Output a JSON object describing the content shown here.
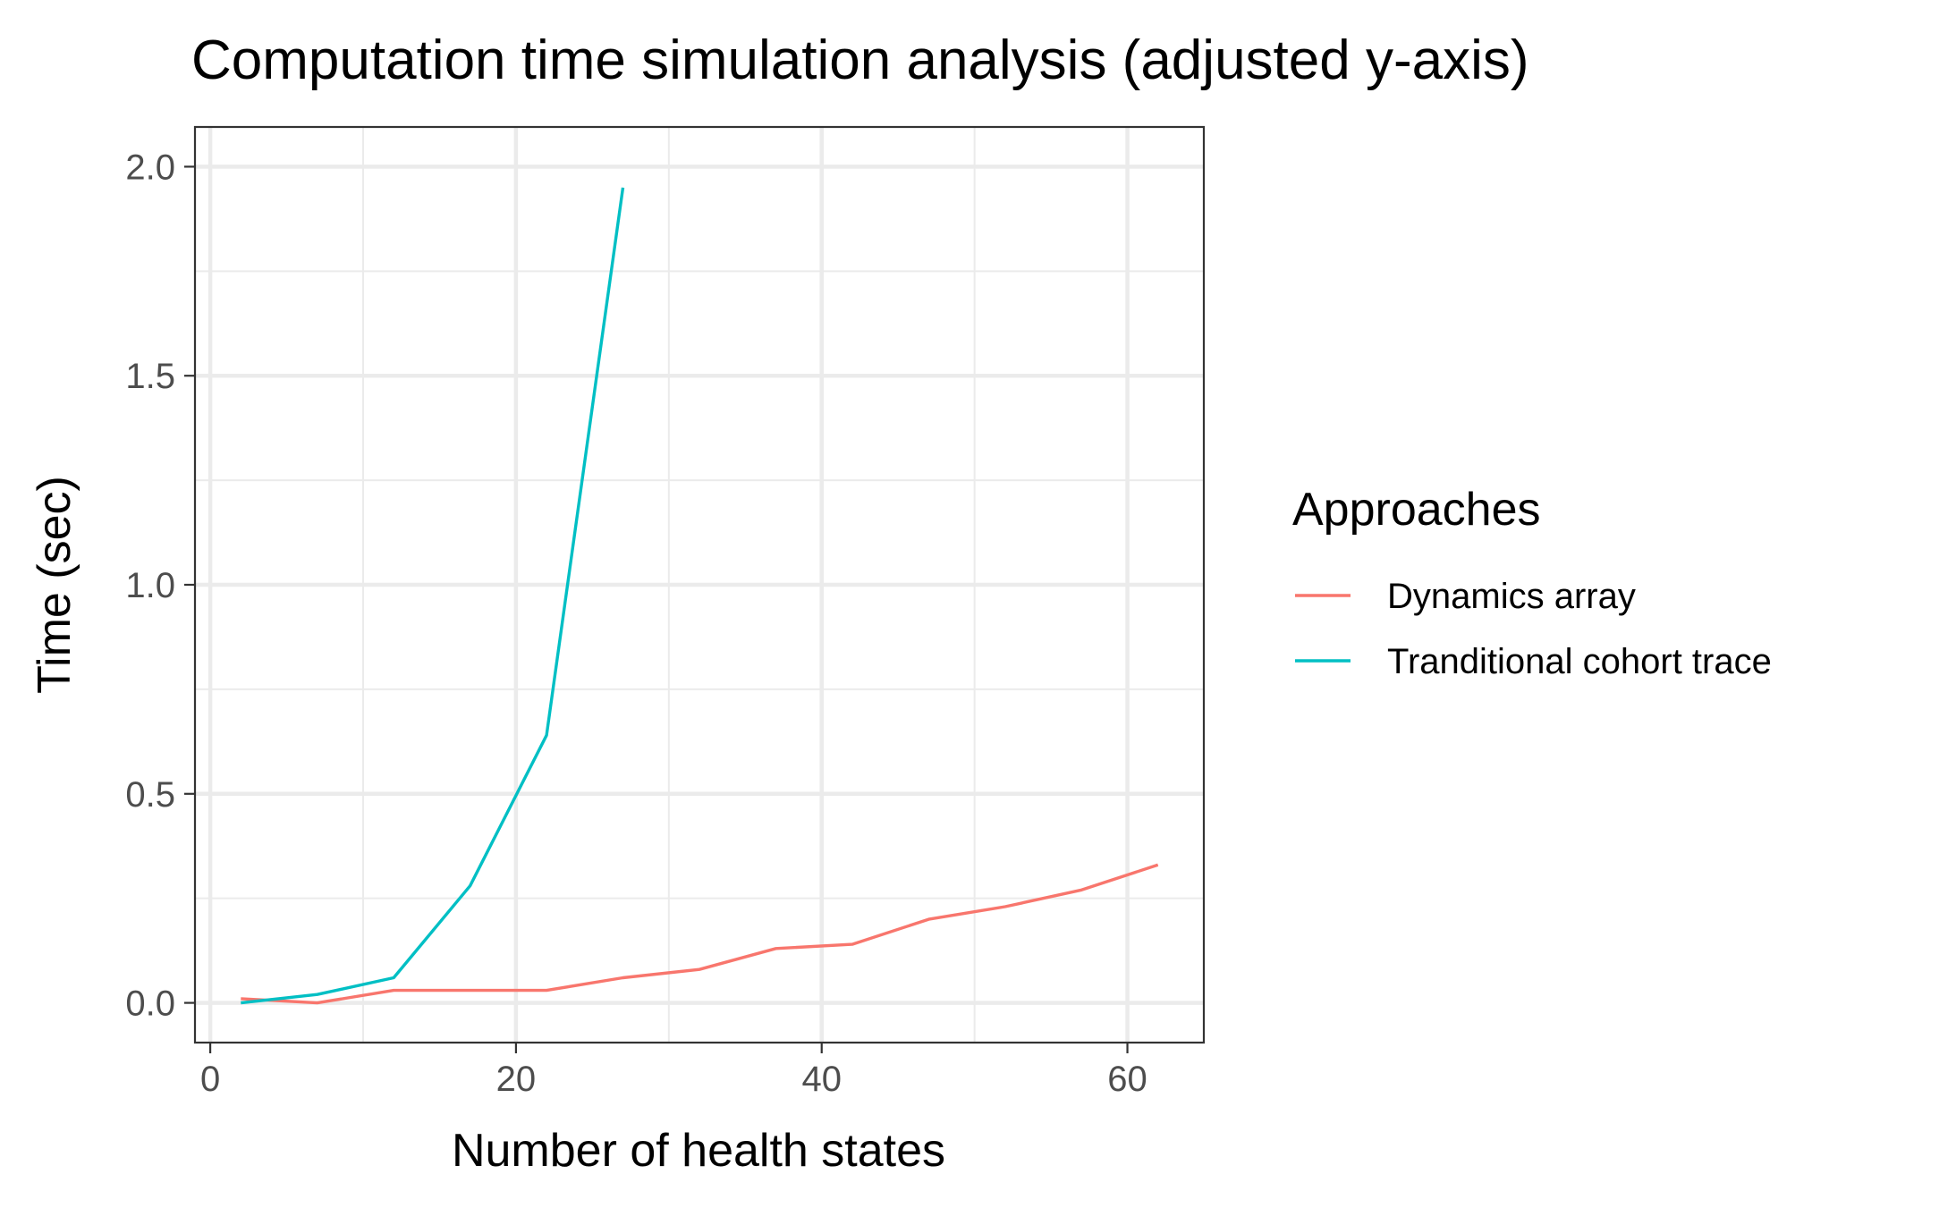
{
  "chart_data": {
    "type": "line",
    "title": "Computation time simulation analysis (adjusted y-axis)",
    "xlabel": "Number of health states",
    "ylabel": "Time (sec)",
    "xlim": [
      -1,
      65
    ],
    "ylim": [
      -0.095,
      2.095
    ],
    "x_ticks": [
      0,
      20,
      40,
      60
    ],
    "x_tick_labels": [
      "0",
      "20",
      "40",
      "60"
    ],
    "x_minor_ticks": [
      10,
      30,
      50
    ],
    "y_ticks": [
      0.0,
      0.5,
      1.0,
      1.5,
      2.0
    ],
    "y_tick_labels": [
      "0.0",
      "0.5",
      "1.0",
      "1.5",
      "2.0"
    ],
    "y_minor_ticks": [
      0.25,
      0.75,
      1.25,
      1.75
    ],
    "grid": true,
    "legend": {
      "title": "Approaches",
      "position": "right"
    },
    "series": [
      {
        "name": "Dynamics array",
        "color": "#F8766D",
        "x": [
          2,
          7,
          12,
          17,
          22,
          27,
          32,
          37,
          42,
          47,
          52,
          57,
          62
        ],
        "y": [
          0.01,
          0.0,
          0.03,
          0.03,
          0.03,
          0.06,
          0.08,
          0.13,
          0.14,
          0.2,
          0.23,
          0.27,
          0.33
        ]
      },
      {
        "name": "Tranditional cohort trace",
        "color": "#00BFC4",
        "x": [
          2,
          7,
          12,
          17,
          22,
          27
        ],
        "y": [
          0.0,
          0.02,
          0.06,
          0.28,
          0.64,
          1.95
        ]
      }
    ]
  }
}
